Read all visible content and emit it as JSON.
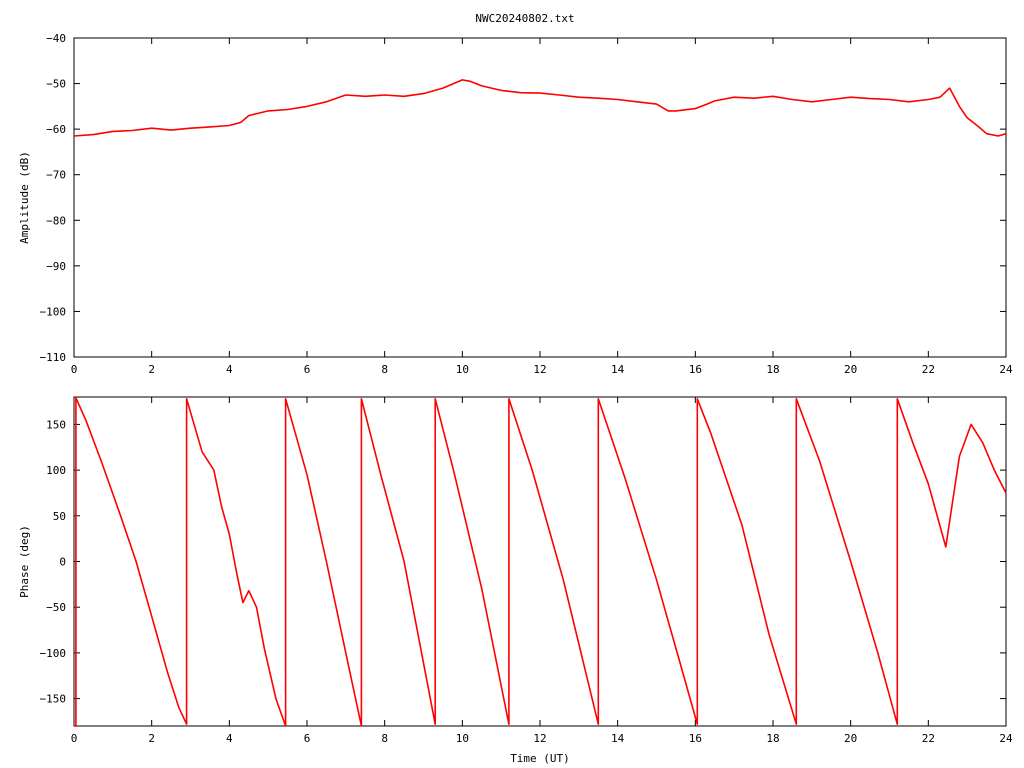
{
  "title": "NWC20240802.txt",
  "colors": {
    "series": "#ff0000",
    "axis": "#000000",
    "background": "#ffffff"
  },
  "chart_data": [
    {
      "type": "line",
      "ylabel": "Amplitude (dB)",
      "xlim": [
        0,
        24
      ],
      "ylim": [
        -110,
        -40
      ],
      "xticks": [
        0,
        2,
        4,
        6,
        8,
        10,
        12,
        14,
        16,
        18,
        20,
        22,
        24
      ],
      "yticks": [
        -40,
        -50,
        -60,
        -70,
        -80,
        -90,
        -100,
        -110
      ],
      "grid": false,
      "series": [
        {
          "x": [
            0,
            0.5,
            1,
            1.5,
            2,
            2.5,
            3,
            3.5,
            4,
            4.3,
            4.5,
            5,
            5.5,
            6,
            6.5,
            7,
            7.5,
            8,
            8.5,
            9,
            9.5,
            10,
            10.2,
            10.5,
            11,
            11.5,
            12,
            12.5,
            13,
            13.5,
            14,
            14.5,
            15,
            15.3,
            15.5,
            16,
            16.3,
            16.5,
            17,
            17.5,
            18,
            18.5,
            19,
            19.5,
            20,
            20.5,
            21,
            21.5,
            22,
            22.3,
            22.55,
            22.8,
            23,
            23.3,
            23.5,
            23.8,
            24
          ],
          "y": [
            -61.5,
            -61.2,
            -60.5,
            -60.3,
            -59.8,
            -60.2,
            -59.8,
            -59.5,
            -59.2,
            -58.5,
            -57,
            -56,
            -55.7,
            -55,
            -54,
            -52.5,
            -52.8,
            -52.5,
            -52.8,
            -52.2,
            -51,
            -49.2,
            -49.5,
            -50.5,
            -51.5,
            -52,
            -52.1,
            -52.5,
            -53,
            -53.2,
            -53.5,
            -54,
            -54.5,
            -56,
            -56,
            -55.5,
            -54.5,
            -53.8,
            -53,
            -53.2,
            -52.8,
            -53.5,
            -54,
            -53.5,
            -53,
            -53.3,
            -53.5,
            -54,
            -53.5,
            -53,
            -51,
            -55,
            -57.5,
            -59.5,
            -61,
            -61.5,
            -61
          ]
        }
      ]
    },
    {
      "type": "line",
      "xlabel": "Time (UT)",
      "ylabel": "Phase (deg)",
      "xlim": [
        0,
        24
      ],
      "ylim": [
        -180,
        180
      ],
      "xticks": [
        0,
        2,
        4,
        6,
        8,
        10,
        12,
        14,
        16,
        18,
        20,
        22,
        24
      ],
      "yticks": [
        150,
        100,
        50,
        0,
        -50,
        -100,
        -150
      ],
      "grid": false,
      "series": [
        {
          "x": [
            0,
            0.05,
            0.05,
            0.06,
            0.3,
            0.7,
            1.2,
            1.6,
            2.0,
            2.4,
            2.7,
            2.9,
            2.9,
            3.3,
            3.6,
            3.8,
            4.0,
            4.2,
            4.35,
            4.5,
            4.7,
            4.9,
            5.2,
            5.45,
            5.45,
            6.0,
            6.5,
            7.0,
            7.4,
            7.4,
            7.9,
            8.5,
            9.3,
            9.3,
            9.8,
            10.5,
            11.2,
            11.2,
            11.8,
            12.6,
            13.5,
            13.5,
            14.2,
            15.0,
            15.6,
            16.05,
            16.05,
            16.4,
            17.2,
            17.9,
            18.6,
            18.6,
            19.2,
            20.0,
            20.7,
            21.2,
            21.2,
            21.6,
            22.0,
            22.45,
            22.8,
            23.1,
            23.4,
            23.7,
            24
          ],
          "y": [
            -180,
            -180,
            180,
            178,
            155,
            110,
            50,
            0,
            -60,
            -120,
            -160,
            -178,
            178,
            120,
            100,
            60,
            30,
            -15,
            -45,
            -32,
            -50,
            -95,
            -150,
            -180,
            178,
            95,
            0,
            -100,
            -180,
            178,
            95,
            0,
            -178,
            178,
            95,
            -30,
            -178,
            178,
            100,
            -20,
            -178,
            178,
            90,
            -20,
            -110,
            -178,
            178,
            140,
            40,
            -80,
            -178,
            178,
            110,
            0,
            -100,
            -178,
            178,
            130,
            85,
            16,
            115,
            150,
            130,
            100,
            75
          ]
        }
      ]
    }
  ]
}
